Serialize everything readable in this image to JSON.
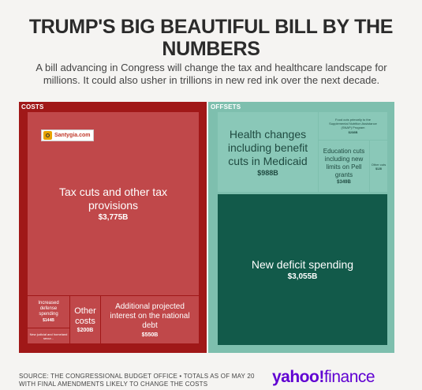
{
  "header": {
    "title": "TRUMP'S BIG BEAUTIFUL BILL BY THE NUMBERS",
    "subtitle": "A bill advancing in Congress will change the tax and healthcare landscape for millions. It could also usher in trillions in new red ink over the next decade."
  },
  "colors": {
    "costs_frame": "#a01818",
    "costs_fill": "#c0484a",
    "offsets_frame": "#7ebfae",
    "offsets_fill": "#8ac8b8",
    "deficit_fill": "#125a4a"
  },
  "chart_data": {
    "type": "treemap",
    "groups": [
      {
        "name": "COSTS",
        "items": [
          {
            "label": "Tax cuts and other tax provisions",
            "value_text": "$3,775B",
            "value": 3775
          },
          {
            "label": "Increased defense spending",
            "value_text": "$144B",
            "value": 144
          },
          {
            "label": "New judicial and homeland secur...",
            "value_text": "",
            "value": null
          },
          {
            "label": "Other costs",
            "value_text": "$200B",
            "value": 200
          },
          {
            "label": "Additional projected interest on the national debt",
            "value_text": "$550B",
            "value": 550
          }
        ]
      },
      {
        "name": "OFFSETS",
        "items": [
          {
            "label": "Health changes including benefit cuts in Medicaid",
            "value_text": "$988B",
            "value": 988
          },
          {
            "label": "Food cuts primarily to the Supplemental Nutrition Assistance (SNAP) Program",
            "value_text": "$238B",
            "value": 238
          },
          {
            "label": "Education cuts including new limits on Pell grants",
            "value_text": "$349B",
            "value": 349
          },
          {
            "label": "Other cuts",
            "value_text": "$128",
            "value": 128
          },
          {
            "label": "New deficit spending",
            "value_text": "$3,055B",
            "value": 3055
          }
        ]
      }
    ]
  },
  "watermark": {
    "text": "Santygia.com",
    "icon": "camera-icon"
  },
  "footer": {
    "source": "SOURCE: THE CONGRESSIONAL BUDGET OFFICE • TOTALS AS OF MAY 20 WITH FINAL AMENDMENTS LIKELY TO CHANGE THE COSTS",
    "logo_main": "yahoo!",
    "logo_sub": "finance"
  }
}
